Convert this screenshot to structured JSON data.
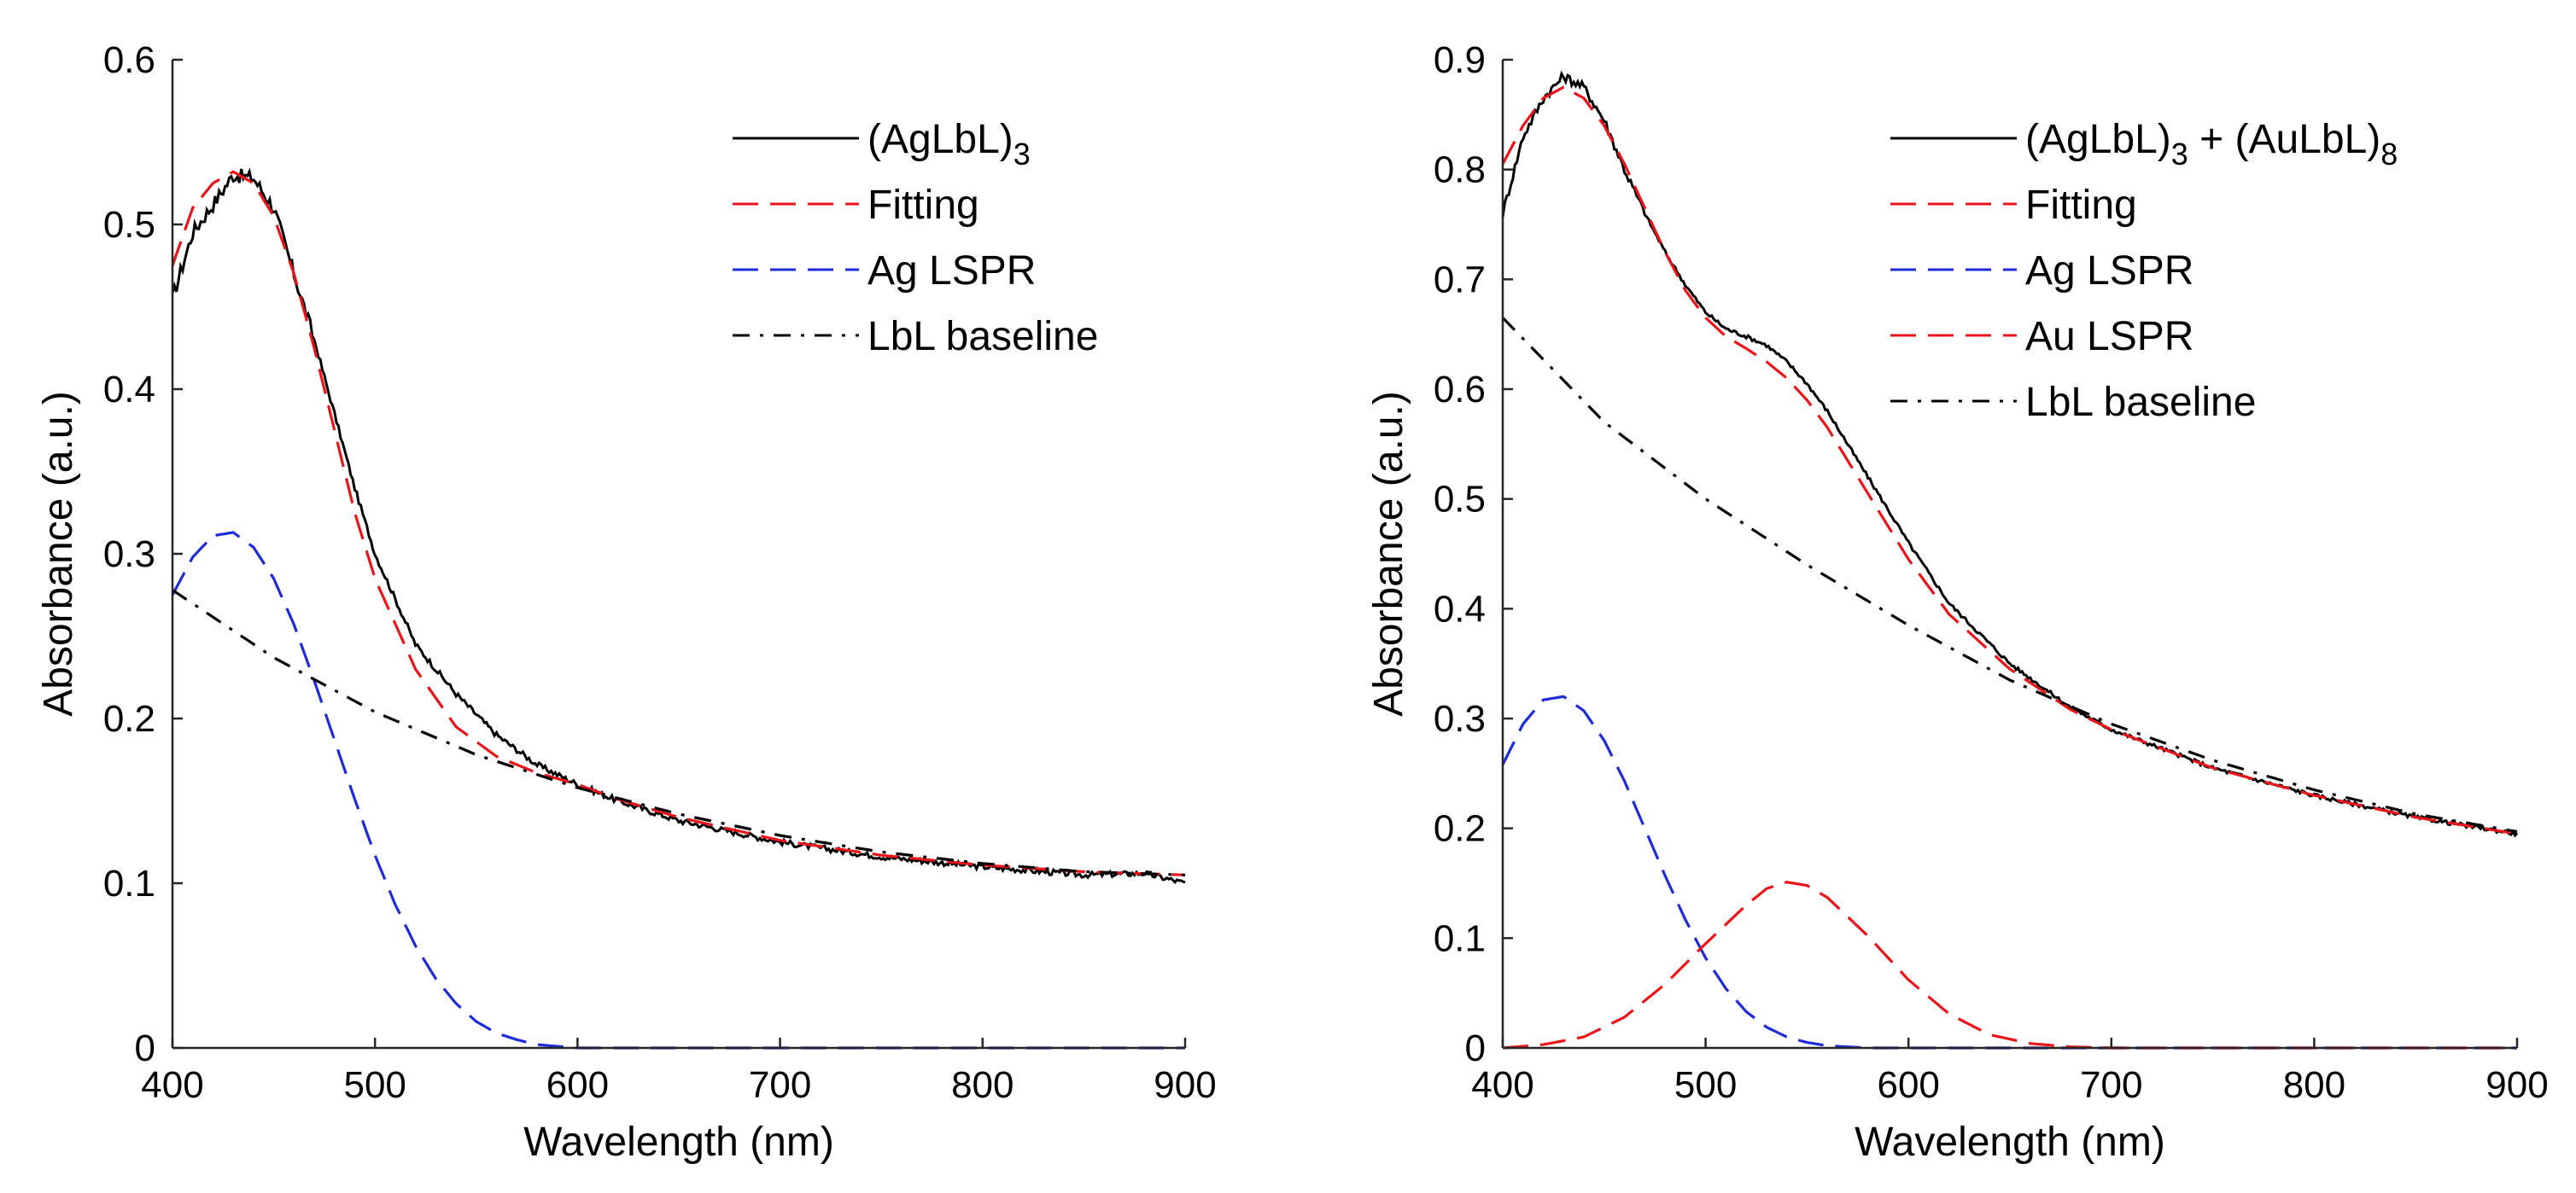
{
  "colors": {
    "measured": "#000000",
    "fitting": "#e8161b",
    "ag_lspr": "#1f2bd6",
    "au_lspr": "#e8161b",
    "baseline": "#000000"
  },
  "chart_data": [
    {
      "type": "line",
      "id": "left",
      "xlabel": "Wavelength (nm)",
      "ylabel": "Absorbance (a.u.)",
      "xlim": [
        400,
        900
      ],
      "ylim": [
        0,
        0.6
      ],
      "xticks": [
        400,
        500,
        600,
        700,
        800,
        900
      ],
      "yticks": [
        0,
        0.1,
        0.2,
        0.3,
        0.4,
        0.5,
        0.6
      ],
      "ytick_labels": [
        "0",
        "0.1",
        "0.2",
        "0.3",
        "0.4",
        "0.5",
        "0.6"
      ],
      "legend_position": "top-right",
      "legend": [
        {
          "series": "measured",
          "label": "(AgLbL)",
          "sub": "3"
        },
        {
          "series": "fitting",
          "label": "Fitting"
        },
        {
          "series": "ag_lspr",
          "label": "Ag LSPR"
        },
        {
          "series": "baseline",
          "label": "LbL baseline"
        }
      ],
      "series": [
        {
          "key": "measured",
          "name": "(AgLbL)3",
          "style": "solid",
          "color": "#000000",
          "noise": true,
          "x": [
            400,
            410,
            420,
            430,
            440,
            450,
            460,
            470,
            480,
            490,
            500,
            520,
            540,
            560,
            580,
            600,
            620,
            650,
            700,
            750,
            800,
            850,
            880,
            900
          ],
          "y": [
            0.455,
            0.495,
            0.512,
            0.53,
            0.528,
            0.51,
            0.47,
            0.43,
            0.385,
            0.34,
            0.3,
            0.245,
            0.215,
            0.19,
            0.172,
            0.16,
            0.15,
            0.138,
            0.125,
            0.116,
            0.11,
            0.105,
            0.106,
            0.1
          ]
        },
        {
          "key": "fitting",
          "name": "Fitting",
          "style": "dash",
          "color": "#e8161b",
          "x": [
            400,
            410,
            420,
            430,
            440,
            450,
            460,
            470,
            480,
            490,
            500,
            520,
            540,
            560,
            580,
            600,
            620,
            650,
            700,
            750,
            800,
            850,
            900
          ],
          "y": [
            0.475,
            0.51,
            0.525,
            0.532,
            0.525,
            0.505,
            0.47,
            0.425,
            0.375,
            0.325,
            0.285,
            0.23,
            0.195,
            0.177,
            0.167,
            0.16,
            0.151,
            0.14,
            0.126,
            0.117,
            0.111,
            0.107,
            0.105
          ]
        },
        {
          "key": "ag_lspr",
          "name": "Ag LSPR",
          "style": "dash",
          "color": "#1f2bd6",
          "x": [
            400,
            410,
            420,
            430,
            440,
            450,
            460,
            470,
            480,
            490,
            500,
            510,
            520,
            530,
            540,
            550,
            560,
            570,
            580,
            600,
            650,
            700,
            800,
            900
          ],
          "y": [
            0.275,
            0.298,
            0.311,
            0.313,
            0.304,
            0.285,
            0.257,
            0.223,
            0.187,
            0.151,
            0.117,
            0.087,
            0.062,
            0.042,
            0.027,
            0.016,
            0.009,
            0.005,
            0.002,
            0.0,
            0.0,
            0.0,
            0.0,
            0.0
          ]
        },
        {
          "key": "baseline",
          "name": "LbL baseline",
          "style": "dashdot",
          "color": "#000000",
          "x": [
            400,
            450,
            500,
            550,
            600,
            650,
            700,
            750,
            800,
            850,
            900
          ],
          "y": [
            0.278,
            0.237,
            0.204,
            0.178,
            0.158,
            0.142,
            0.129,
            0.119,
            0.112,
            0.107,
            0.105
          ]
        }
      ]
    },
    {
      "type": "line",
      "id": "right",
      "xlabel": "Wavelength (nm)",
      "ylabel": "Absorbance (a.u.)",
      "xlim": [
        400,
        900
      ],
      "ylim": [
        0,
        0.9
      ],
      "xticks": [
        400,
        500,
        600,
        700,
        800,
        900
      ],
      "yticks": [
        0,
        0.1,
        0.2,
        0.3,
        0.4,
        0.5,
        0.6,
        0.7,
        0.8,
        0.9
      ],
      "ytick_labels": [
        "0",
        "0.1",
        "0.2",
        "0.3",
        "0.4",
        "0.5",
        "0.6",
        "0.7",
        "0.8",
        "0.9"
      ],
      "legend_position": "top-right",
      "legend": [
        {
          "series": "measured",
          "label": "(AgLbL)",
          "sub": "3",
          "label2": " + (AuLbL)",
          "sub2": "8"
        },
        {
          "series": "fitting",
          "label": "Fitting"
        },
        {
          "series": "ag_lspr",
          "label": "Ag LSPR"
        },
        {
          "series": "au_lspr",
          "label": "Au LSPR"
        },
        {
          "series": "baseline",
          "label": "LbL baseline"
        }
      ],
      "series": [
        {
          "key": "measured",
          "name": "(AgLbL)3 + (AuLbL)8",
          "style": "solid",
          "color": "#000000",
          "noise": true,
          "x": [
            400,
            410,
            420,
            430,
            440,
            450,
            460,
            470,
            480,
            490,
            500,
            510,
            520,
            530,
            540,
            550,
            560,
            580,
            600,
            620,
            650,
            680,
            700,
            750,
            800,
            850,
            900
          ],
          "y": [
            0.76,
            0.83,
            0.865,
            0.885,
            0.875,
            0.845,
            0.8,
            0.76,
            0.725,
            0.695,
            0.67,
            0.655,
            0.648,
            0.64,
            0.625,
            0.605,
            0.58,
            0.52,
            0.46,
            0.405,
            0.35,
            0.31,
            0.29,
            0.255,
            0.23,
            0.21,
            0.195
          ]
        },
        {
          "key": "fitting",
          "name": "Fitting",
          "style": "dash",
          "color": "#e8161b",
          "x": [
            400,
            410,
            420,
            430,
            440,
            450,
            460,
            470,
            480,
            490,
            500,
            510,
            520,
            530,
            540,
            550,
            560,
            580,
            600,
            620,
            650,
            680,
            700,
            750,
            800,
            850,
            900
          ],
          "y": [
            0.805,
            0.84,
            0.865,
            0.875,
            0.865,
            0.84,
            0.805,
            0.765,
            0.725,
            0.69,
            0.665,
            0.648,
            0.637,
            0.625,
            0.61,
            0.59,
            0.565,
            0.505,
            0.445,
            0.395,
            0.345,
            0.308,
            0.29,
            0.255,
            0.23,
            0.21,
            0.195
          ]
        },
        {
          "key": "ag_lspr",
          "name": "Ag LSPR",
          "style": "dash",
          "color": "#1f2bd6",
          "x": [
            400,
            410,
            420,
            430,
            440,
            450,
            460,
            470,
            480,
            490,
            500,
            510,
            520,
            530,
            540,
            550,
            560,
            570,
            580,
            600,
            650,
            700,
            800,
            900
          ],
          "y": [
            0.258,
            0.295,
            0.317,
            0.32,
            0.307,
            0.28,
            0.243,
            0.2,
            0.157,
            0.117,
            0.082,
            0.054,
            0.033,
            0.019,
            0.01,
            0.005,
            0.002,
            0.001,
            0.0,
            0.0,
            0.0,
            0.0,
            0.0,
            0.0
          ]
        },
        {
          "key": "au_lspr",
          "name": "Au LSPR",
          "style": "dash",
          "color": "#e8161b",
          "x": [
            400,
            420,
            440,
            460,
            480,
            500,
            520,
            530,
            540,
            550,
            560,
            580,
            600,
            620,
            640,
            660,
            680,
            700,
            800,
            900
          ],
          "y": [
            0.0,
            0.003,
            0.01,
            0.028,
            0.058,
            0.095,
            0.13,
            0.145,
            0.151,
            0.148,
            0.137,
            0.102,
            0.062,
            0.031,
            0.012,
            0.004,
            0.001,
            0.0,
            0.0,
            0.0
          ]
        },
        {
          "key": "baseline",
          "name": "LbL baseline",
          "style": "dashdot",
          "color": "#000000",
          "x": [
            400,
            450,
            500,
            550,
            600,
            650,
            700,
            750,
            800,
            850,
            900
          ],
          "y": [
            0.665,
            0.57,
            0.5,
            0.44,
            0.385,
            0.335,
            0.295,
            0.262,
            0.235,
            0.213,
            0.197
          ]
        }
      ]
    }
  ]
}
